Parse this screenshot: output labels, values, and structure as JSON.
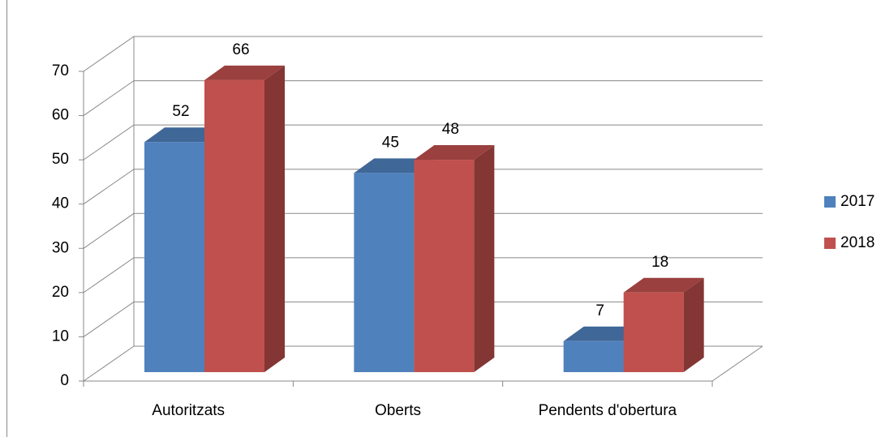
{
  "chart_data": {
    "type": "bar3d",
    "categories": [
      "Autoritzats",
      "Oberts",
      "Pendents d'obertura"
    ],
    "series": [
      {
        "name": "2017",
        "color": "#4f81bd",
        "values": [
          52,
          45,
          7
        ]
      },
      {
        "name": "2018",
        "color": "#c0504d",
        "values": [
          66,
          48,
          18
        ]
      }
    ],
    "ylim": [
      0,
      70
    ],
    "yticks": [
      0,
      10,
      20,
      30,
      40,
      50,
      60,
      70
    ],
    "grid": true,
    "legend": "right"
  }
}
